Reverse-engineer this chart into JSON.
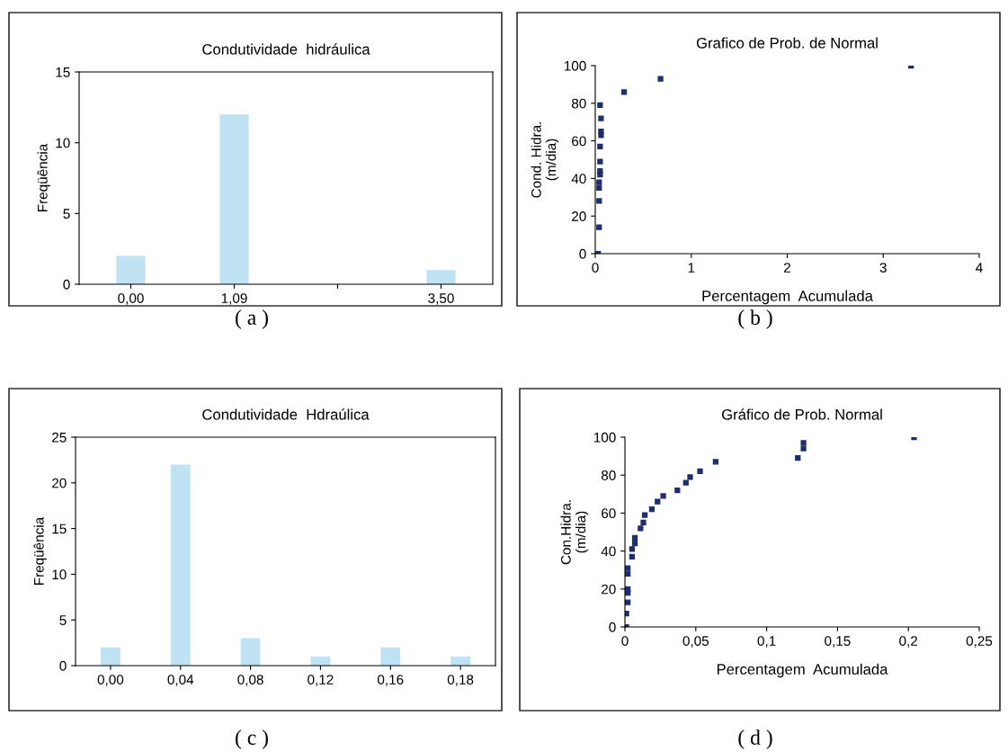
{
  "chart_data": [
    {
      "type": "bar",
      "title": "Condutividade  hidráulica",
      "ylabel": "Freqüência",
      "categories": [
        "0,00",
        "1,09",
        null,
        "3,50"
      ],
      "values": [
        2,
        12,
        0,
        1
      ],
      "color": "#bfe3f2",
      "ylim": [
        0,
        15
      ],
      "yticks": [
        0,
        5,
        10,
        15
      ],
      "grid": false,
      "legend": false,
      "annotations": [
        "( a )"
      ]
    },
    {
      "type": "scatter",
      "title": "Grafico de Prob. de Normal",
      "xlabel": "Percentagem  Acumulada",
      "ylabel": "Cond. Hidra.\n(m/dia)",
      "marker": "square",
      "grid": false,
      "legend": false,
      "xlim": [
        0,
        4
      ],
      "xticks": [
        0,
        1,
        2,
        3,
        4
      ],
      "ylim": [
        0,
        100
      ],
      "yticks": [
        0,
        20,
        40,
        60,
        80,
        100
      ],
      "annotations": [
        "( b )"
      ],
      "series": [
        {
          "color": "#1f2f6e",
          "x": [
            0.03,
            0.04,
            0.04,
            0.04,
            0.04,
            0.05,
            0.05,
            0.05,
            0.05,
            0.06,
            0.06,
            0.06,
            0.05,
            0.3,
            0.68,
            3.29
          ],
          "values": [
            0,
            14,
            28,
            35,
            38,
            42,
            44,
            49,
            57,
            63,
            65,
            72,
            79,
            86,
            93,
            100
          ]
        }
      ]
    },
    {
      "type": "bar",
      "title": "Condutividade  Hdraúlica",
      "ylabel": "Freqüência",
      "categories": [
        "0,00",
        "0,04",
        "0,08",
        "0,12",
        "0,16",
        "0,18"
      ],
      "values": [
        2,
        22,
        3,
        1,
        2,
        1
      ],
      "color": "#bfe3f2",
      "ylim": [
        0,
        25
      ],
      "yticks": [
        0,
        5,
        10,
        15,
        20,
        25
      ],
      "grid": false,
      "legend": false,
      "annotations": [
        "( c )"
      ]
    },
    {
      "type": "scatter",
      "title": "Gráfico de Prob. Normal",
      "xlabel": "Percentagem  Acumulada",
      "ylabel": "Con.Hidra.\n(m/dia)",
      "marker": "square",
      "grid": false,
      "legend": false,
      "xlim": [
        0,
        0.25
      ],
      "xticks": [
        {
          "value": 0,
          "label": "0"
        },
        {
          "value": 0.05,
          "label": "0,05"
        },
        {
          "value": 0.1,
          "label": "0,1"
        },
        {
          "value": 0.15,
          "label": "0,15"
        },
        {
          "value": 0.2,
          "label": "0,2"
        },
        {
          "value": 0.25,
          "label": "0,25"
        }
      ],
      "ylim": [
        0,
        100
      ],
      "yticks": [
        0,
        20,
        40,
        60,
        80,
        100
      ],
      "annotations": [
        "( d )"
      ],
      "series": [
        {
          "color": "#1f2f6e",
          "x": [
            0.001,
            0.001,
            0.002,
            0.002,
            0.002,
            0.002,
            0.002,
            0.005,
            0.005,
            0.007,
            0.007,
            0.011,
            0.013,
            0.014,
            0.019,
            0.023,
            0.027,
            0.037,
            0.043,
            0.046,
            0.053,
            0.064,
            0.122,
            0.126,
            0.126,
            0.204
          ],
          "values": [
            0,
            7,
            13,
            18,
            20,
            28,
            31,
            37,
            41,
            44,
            47,
            52,
            55,
            59,
            62,
            66,
            69,
            72,
            76,
            79,
            82,
            87,
            89,
            94,
            97,
            100
          ]
        }
      ]
    }
  ]
}
